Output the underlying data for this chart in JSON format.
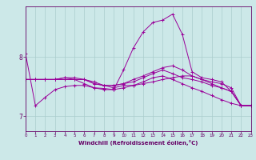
{
  "title": "",
  "xlabel": "Windchill (Refroidissement éolien,°C)",
  "bg_color": "#cce8e8",
  "line_color": "#990099",
  "grid_color": "#aacccc",
  "axis_color": "#660066",
  "text_color": "#660066",
  "x_ticks": [
    0,
    1,
    2,
    3,
    4,
    5,
    6,
    7,
    8,
    9,
    10,
    11,
    12,
    13,
    14,
    15,
    16,
    17,
    18,
    19,
    20,
    21,
    22,
    23
  ],
  "y_ticks": [
    7,
    8
  ],
  "ylim": [
    6.75,
    8.85
  ],
  "xlim": [
    0,
    23
  ],
  "lines": [
    [
      8.05,
      7.18,
      7.32,
      7.45,
      7.5,
      7.52,
      7.52,
      7.48,
      7.47,
      7.45,
      7.78,
      8.15,
      8.42,
      8.58,
      8.62,
      8.72,
      8.38,
      7.75,
      7.65,
      7.62,
      7.58,
      7.42,
      7.18,
      7.18
    ],
    [
      7.62,
      7.62,
      7.62,
      7.62,
      7.65,
      7.62,
      7.62,
      7.55,
      7.52,
      7.48,
      7.52,
      7.52,
      7.55,
      7.58,
      7.62,
      7.65,
      7.68,
      7.68,
      7.62,
      7.58,
      7.55,
      7.48,
      7.18,
      7.18
    ],
    [
      7.62,
      7.62,
      7.62,
      7.62,
      7.62,
      7.62,
      7.55,
      7.48,
      7.45,
      7.45,
      7.48,
      7.52,
      7.58,
      7.65,
      7.68,
      7.62,
      7.55,
      7.48,
      7.42,
      7.35,
      7.28,
      7.22,
      7.18,
      7.18
    ],
    [
      7.62,
      7.62,
      7.62,
      7.62,
      7.65,
      7.65,
      7.62,
      7.55,
      7.52,
      7.52,
      7.55,
      7.58,
      7.65,
      7.72,
      7.78,
      7.72,
      7.65,
      7.62,
      7.58,
      7.52,
      7.48,
      7.42,
      7.18,
      7.18
    ],
    [
      7.62,
      7.62,
      7.62,
      7.62,
      7.62,
      7.62,
      7.62,
      7.58,
      7.52,
      7.52,
      7.55,
      7.62,
      7.68,
      7.75,
      7.82,
      7.85,
      7.78,
      7.68,
      7.62,
      7.55,
      7.48,
      7.42,
      7.18,
      7.18
    ]
  ]
}
